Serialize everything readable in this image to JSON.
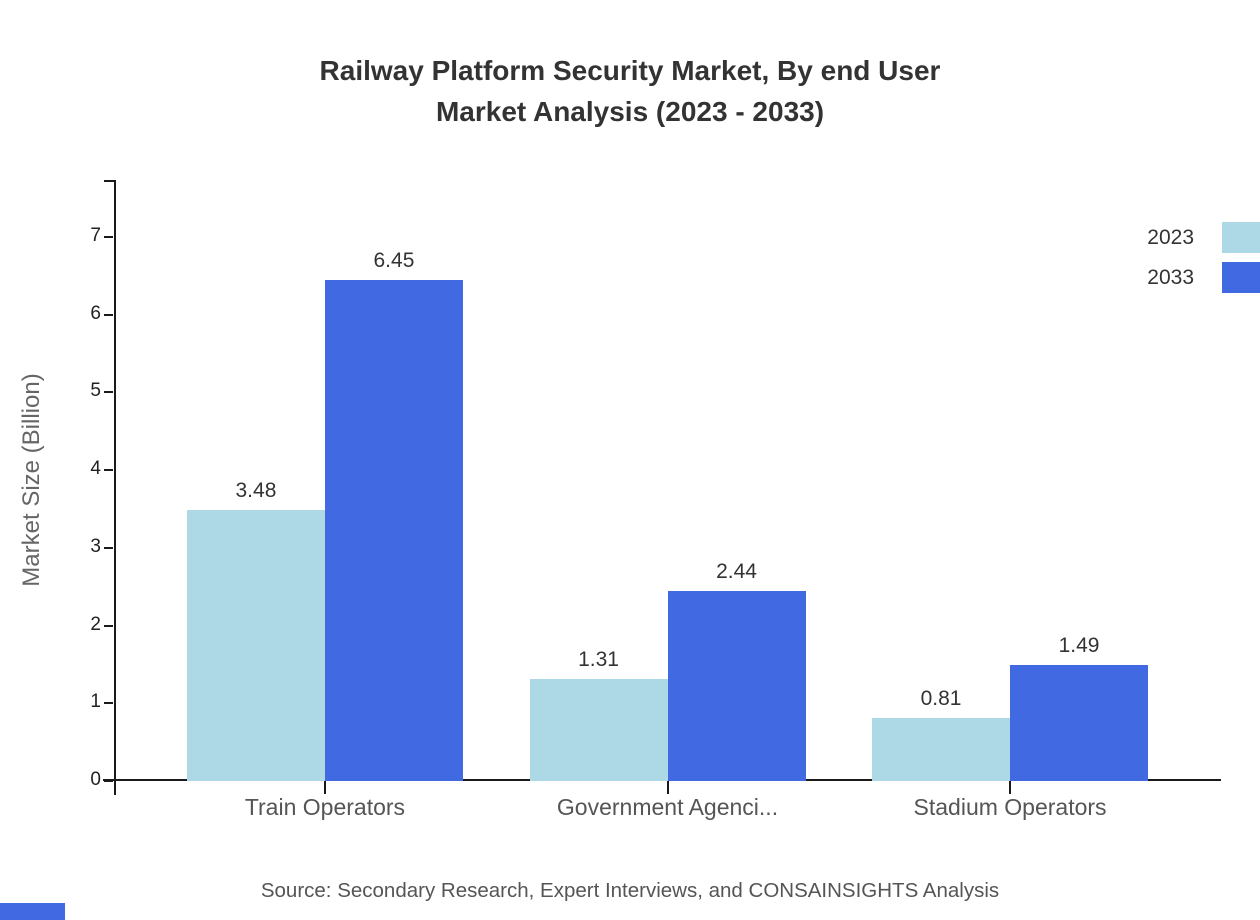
{
  "chart_data": {
    "type": "bar",
    "title": "Railway Platform Security Market, By end User\nMarket Analysis (2023 - 2033)",
    "ylabel": "Market Size (Billion)",
    "categories": [
      "Train Operators",
      "Government Agenci...",
      "Stadium Operators"
    ],
    "series": [
      {
        "name": "2023",
        "color": "#ADD8E6",
        "values": [
          3.48,
          1.31,
          0.81
        ]
      },
      {
        "name": "2033",
        "color": "#4169E1",
        "values": [
          6.45,
          2.44,
          1.49
        ]
      }
    ],
    "yticks": [
      0,
      1,
      2,
      3,
      4,
      5,
      6,
      7
    ],
    "ylim": [
      0,
      7.73
    ],
    "grid": false,
    "legend_position": "top-right",
    "source": "Source: Secondary Research, Expert Interviews, and CONSAINSIGHTS Analysis"
  },
  "colors": {
    "axis": "#1a1a1a",
    "title_text": "#333333",
    "label_text": "#555555",
    "brand_blue": "#4169E1"
  }
}
